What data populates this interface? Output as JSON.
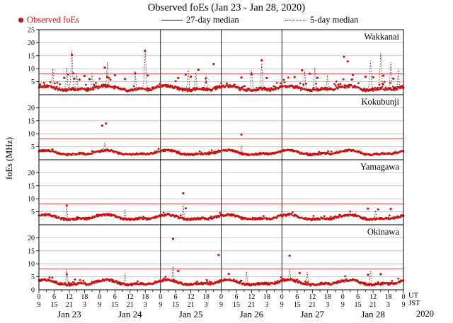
{
  "title": "Observed foEs (Jan 23 - Jan 28, 2020)",
  "legend": {
    "observed_label": "Observed foEs",
    "median27_label": "27-day median",
    "median5_label": "5-day median"
  },
  "y_axis": {
    "label": "foEs (MHz)",
    "tick_values": [
      5,
      10,
      15,
      20,
      25
    ],
    "bottom_tick": "0",
    "max_mhz": 25
  },
  "x_axis": {
    "ut_row": [
      0,
      6,
      12,
      18,
      0,
      6,
      12,
      18,
      0,
      6,
      12,
      18,
      0,
      6,
      12,
      18,
      0,
      6,
      12,
      18,
      0,
      6,
      12,
      18,
      0
    ],
    "jst_row": [
      9,
      15,
      21,
      3,
      9,
      15,
      21,
      3,
      9,
      15,
      21,
      3,
      9,
      15,
      21,
      3,
      9,
      15,
      21,
      3,
      9,
      15,
      21,
      3,
      9
    ],
    "ut_label": "UT",
    "jst_label": "JST",
    "dates": [
      "Jan 23",
      "Jan 24",
      "Jan 25",
      "Jan 26",
      "Jan 27",
      "Jan 28"
    ],
    "year_label": "2020",
    "tick_step_hours": 6,
    "total_hours": 144
  },
  "colors": {
    "observed": "#cc1111",
    "median27": "#111111",
    "median5": "#2a2a2a",
    "threshold": "#c03535",
    "grid": "#aaaaaa",
    "frame": "#000000",
    "day_divider": "#222222"
  },
  "chart_data": {
    "type": "scatter",
    "x_unit": "hours since Jan 23 2020 00:00 UT",
    "y_unit": "MHz",
    "y_range": [
      0,
      25
    ],
    "threshold_mhz": 8,
    "day_divider_hours": [
      48,
      72,
      96
    ],
    "stations": [
      {
        "name": "Wakkanai",
        "seed": 11,
        "median27_diurnal_ut": [
          3.0,
          3.2,
          3.4,
          3.4,
          3.3,
          3.1,
          2.8,
          2.4,
          2.1,
          1.9,
          1.8,
          1.8,
          1.9,
          2.0,
          2.1,
          2.2,
          2.3,
          2.2,
          2.1,
          2.0,
          2.1,
          2.3,
          2.6,
          2.8
        ],
        "observed_scatter": {
          "amplitude": 0.55,
          "upward_bias_prob": 0.12,
          "upward_bias_max": 3.0
        },
        "observed_spikes": [
          [
            10,
            6.5
          ],
          [
            11.5,
            7.8
          ],
          [
            13,
            15.3
          ],
          [
            13.5,
            8.2
          ],
          [
            14,
            6.2
          ],
          [
            16,
            5.8
          ],
          [
            18,
            7.2
          ],
          [
            20,
            6.0
          ],
          [
            26,
            10.4
          ],
          [
            27,
            6.8
          ],
          [
            30,
            7.5
          ],
          [
            34,
            6.1
          ],
          [
            38,
            8.2
          ],
          [
            41.9,
            16.8
          ],
          [
            43,
            7.4
          ],
          [
            55,
            6.4
          ],
          [
            58,
            7.8
          ],
          [
            60,
            6.9
          ],
          [
            63,
            9.6
          ],
          [
            66,
            6.3
          ],
          [
            69,
            11.8
          ],
          [
            80,
            6.6
          ],
          [
            84,
            7.9
          ],
          [
            88,
            13.2
          ],
          [
            90,
            6.4
          ],
          [
            101,
            6.8
          ],
          [
            104,
            9.4
          ],
          [
            107,
            8.1
          ],
          [
            110,
            6.5
          ],
          [
            120.5,
            14.6
          ],
          [
            122,
            12.8
          ],
          [
            124,
            7.6
          ],
          [
            129,
            6.9
          ],
          [
            132,
            6.7
          ],
          [
            136,
            7.3
          ],
          [
            140,
            6.2
          ]
        ],
        "median5_spikes": [
          [
            5.5,
            10.0
          ],
          [
            11,
            10.5
          ],
          [
            13,
            17.0
          ],
          [
            15,
            8.0
          ],
          [
            21,
            8.5
          ],
          [
            27,
            12.5
          ],
          [
            38,
            9.0
          ],
          [
            42,
            17.5
          ],
          [
            59,
            10.0
          ],
          [
            62,
            8.5
          ],
          [
            66,
            7.5
          ],
          [
            84,
            9.5
          ],
          [
            88,
            12.0
          ],
          [
            105,
            9.0
          ],
          [
            109,
            10.5
          ],
          [
            114,
            7.5
          ],
          [
            131,
            13.0
          ],
          [
            135,
            16.0
          ],
          [
            139,
            12.5
          ],
          [
            142,
            10.0
          ]
        ]
      },
      {
        "name": "Kokubunji",
        "seed": 23,
        "median27_diurnal_ut": [
          3.3,
          3.5,
          3.6,
          3.7,
          3.6,
          3.4,
          3.1,
          2.7,
          2.4,
          2.2,
          2.1,
          2.0,
          2.0,
          2.1,
          2.2,
          2.3,
          2.4,
          2.4,
          2.3,
          2.2,
          2.4,
          2.6,
          2.9,
          3.1
        ],
        "observed_scatter": {
          "amplitude": 0.33,
          "upward_bias_prob": 0.03,
          "upward_bias_max": 1.0
        },
        "observed_spikes": [
          [
            25,
            13.1
          ],
          [
            26.5,
            13.9
          ],
          [
            80,
            9.7
          ]
        ],
        "median5_spikes": [
          [
            26,
            6.5
          ],
          [
            80,
            5.5
          ]
        ]
      },
      {
        "name": "Yamagawa",
        "seed": 37,
        "median27_diurnal_ut": [
          3.5,
          3.7,
          3.8,
          3.9,
          3.8,
          3.6,
          3.3,
          2.9,
          2.6,
          2.3,
          2.2,
          2.1,
          2.1,
          2.2,
          2.3,
          2.4,
          2.5,
          2.5,
          2.4,
          2.3,
          2.5,
          2.8,
          3.0,
          3.3
        ],
        "observed_scatter": {
          "amplitude": 0.38,
          "upward_bias_prob": 0.05,
          "upward_bias_max": 1.3
        },
        "observed_spikes": [
          [
            11,
            7.4
          ],
          [
            57,
            12.1
          ],
          [
            58,
            6.3
          ],
          [
            130,
            6.2
          ],
          [
            134,
            5.9
          ],
          [
            139,
            6.1
          ]
        ],
        "median5_spikes": [
          [
            11,
            6.8
          ],
          [
            34,
            6.0
          ],
          [
            57,
            7.5
          ],
          [
            133,
            5.5
          ]
        ]
      },
      {
        "name": "Okinawa",
        "seed": 51,
        "median27_diurnal_ut": [
          3.4,
          3.6,
          3.7,
          3.8,
          3.7,
          3.5,
          3.2,
          2.8,
          2.5,
          2.2,
          2.1,
          2.0,
          2.0,
          2.1,
          2.2,
          2.3,
          2.4,
          2.4,
          2.3,
          2.2,
          2.4,
          2.6,
          2.9,
          3.2
        ],
        "observed_scatter": {
          "amplitude": 0.42,
          "upward_bias_prob": 0.06,
          "upward_bias_max": 1.6
        },
        "observed_spikes": [
          [
            11,
            5.9
          ],
          [
            53,
            19.6
          ],
          [
            55,
            7.2
          ],
          [
            71,
            13.4
          ],
          [
            75,
            6.1
          ],
          [
            99,
            13.1
          ],
          [
            103,
            6.4
          ],
          [
            130,
            5.8
          ],
          [
            135,
            6.0
          ]
        ],
        "median5_spikes": [
          [
            11,
            7.8
          ],
          [
            34,
            6.5
          ],
          [
            53,
            9.0
          ],
          [
            82,
            7.0
          ],
          [
            99,
            8.0
          ],
          [
            106,
            6.8
          ],
          [
            131,
            7.2
          ]
        ]
      }
    ]
  }
}
